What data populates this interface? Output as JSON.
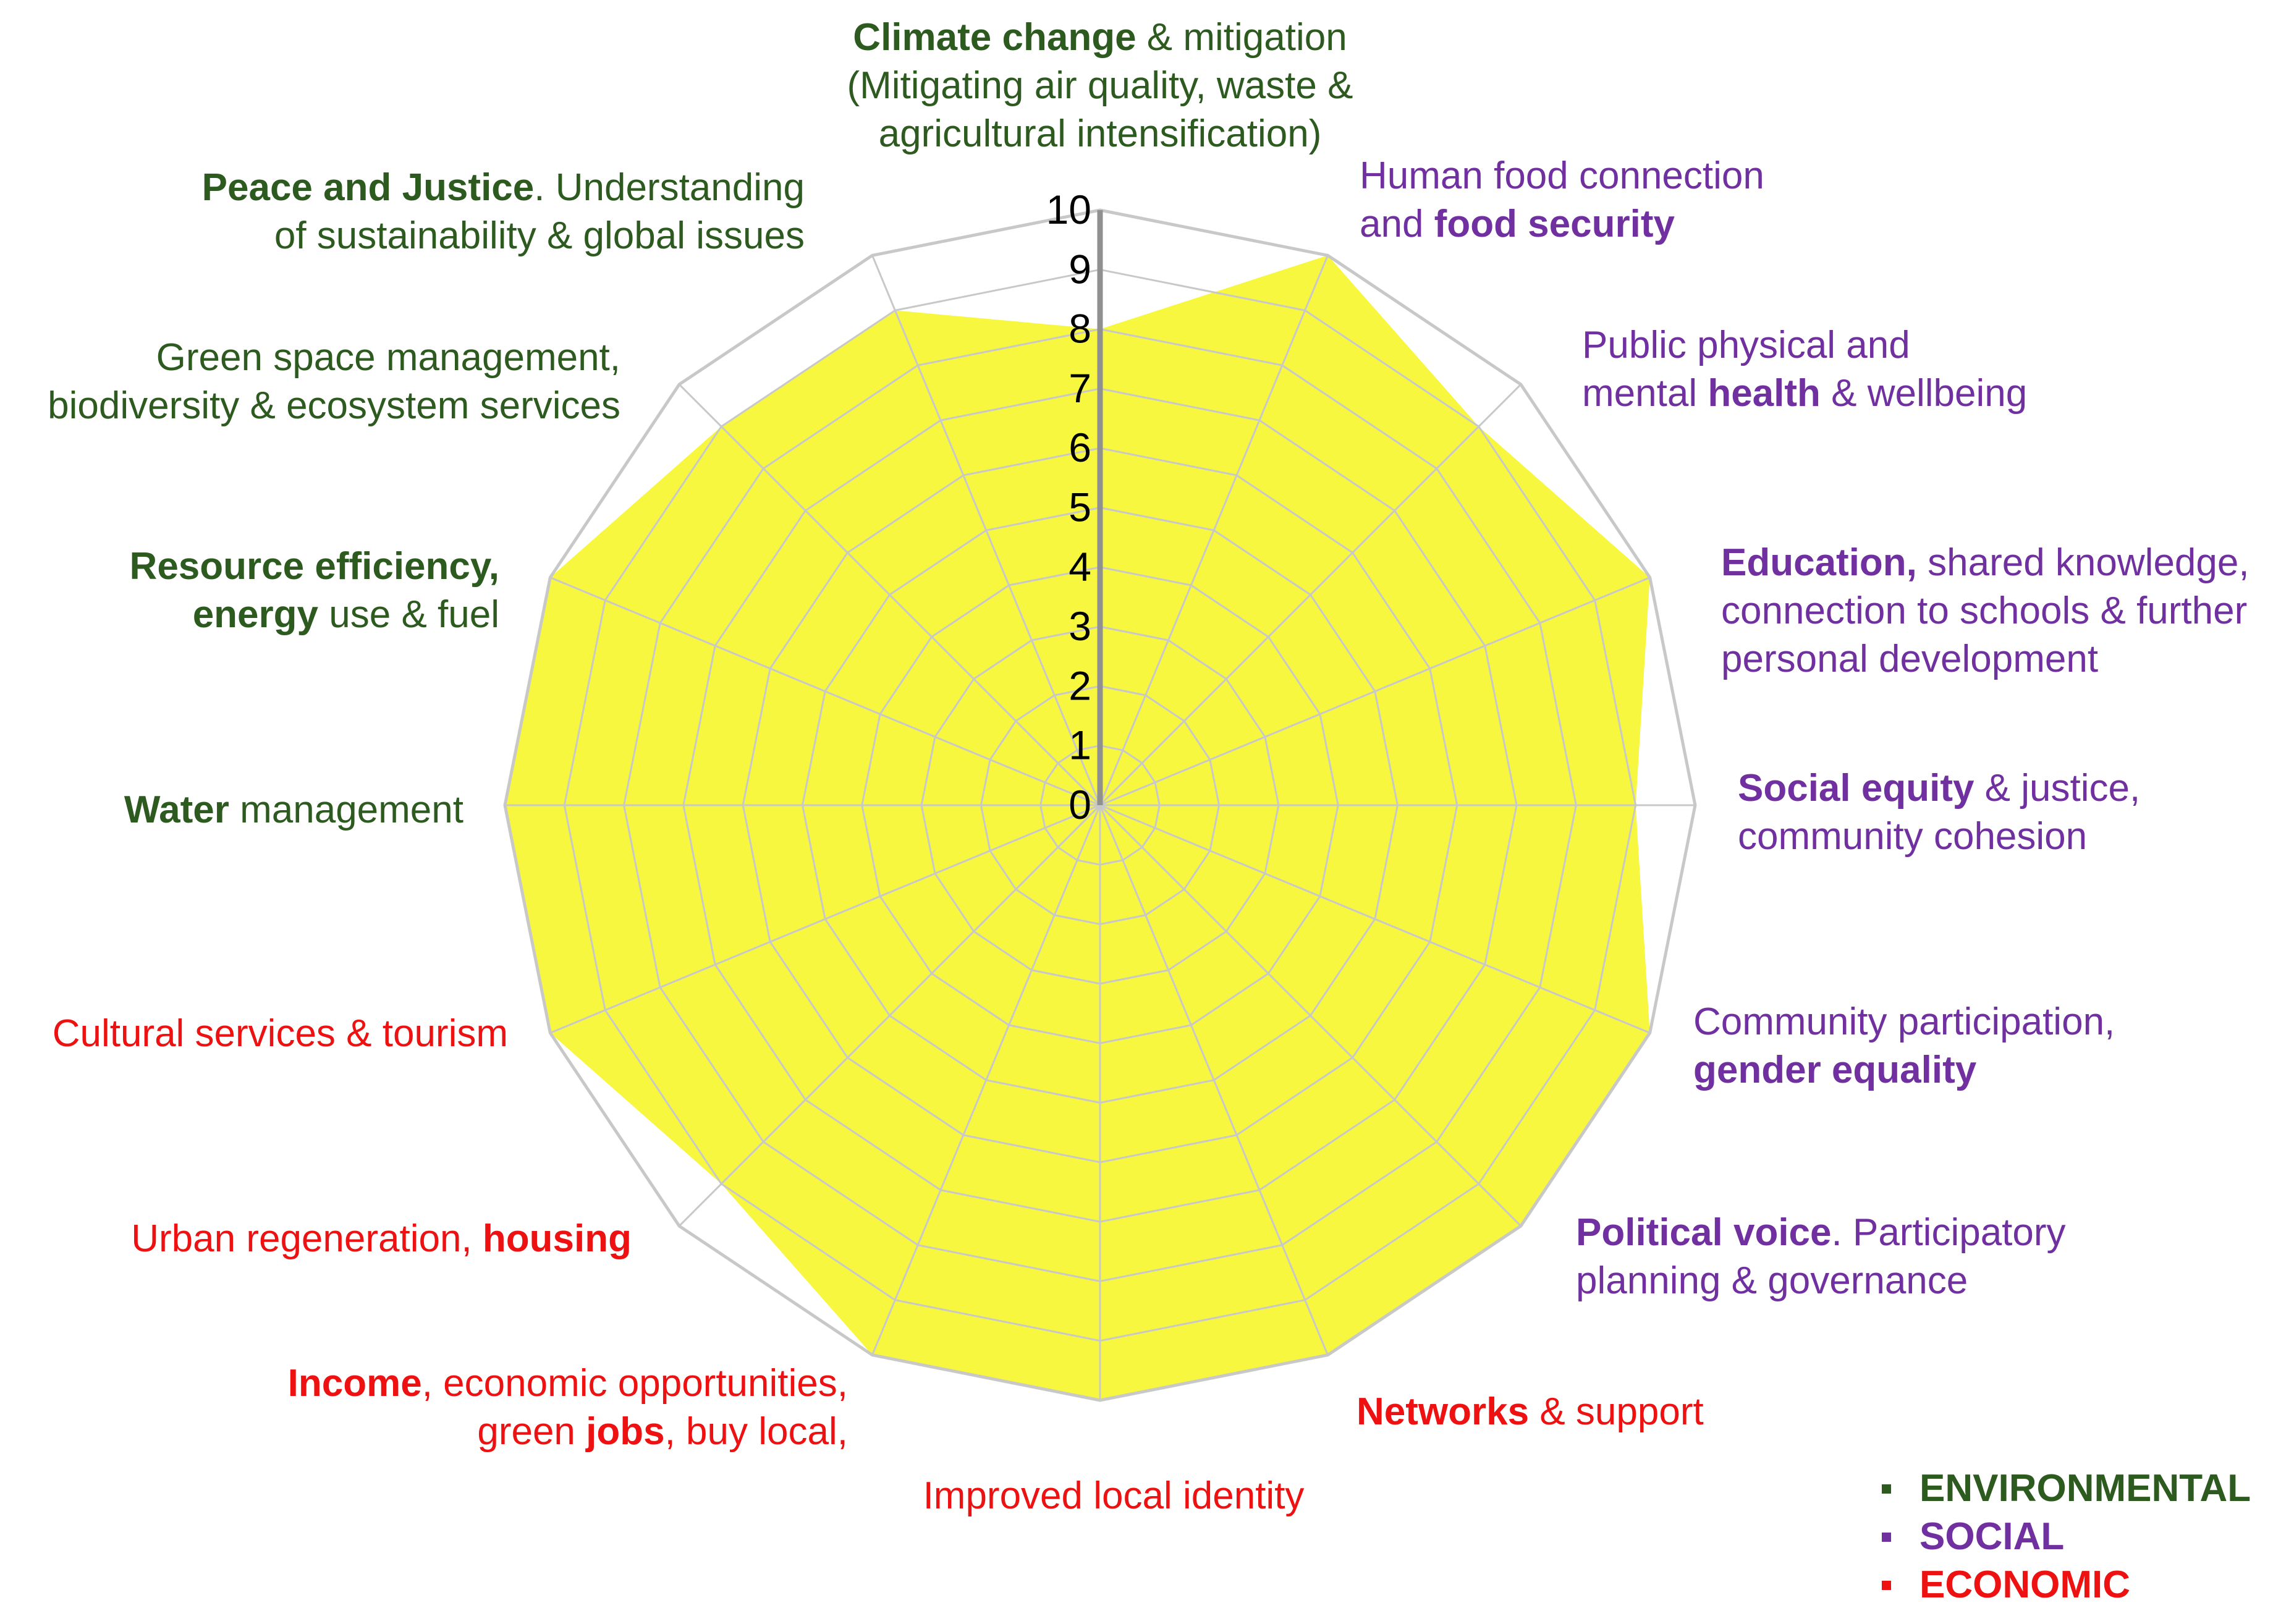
{
  "chart_data": {
    "type": "radar",
    "title": "",
    "scale": {
      "min": 0,
      "max": 10,
      "ticks": [
        "0",
        "1",
        "2",
        "3",
        "4",
        "5",
        "6",
        "7",
        "8",
        "9",
        "10"
      ]
    },
    "axes": [
      {
        "id": "climate",
        "group": "environmental",
        "lines": [
          [
            {
              "t": "Climate change",
              "b": true
            },
            {
              "t": " & mitigation",
              "b": false
            }
          ],
          [
            {
              "t": "(Mitigating air quality, waste &",
              "b": false
            }
          ],
          [
            {
              "t": "agricultural intensification)",
              "b": false
            }
          ]
        ]
      },
      {
        "id": "food",
        "group": "social",
        "lines": [
          [
            {
              "t": "Human food connection",
              "b": false
            }
          ],
          [
            {
              "t": "and ",
              "b": false
            },
            {
              "t": "food security",
              "b": true
            }
          ]
        ]
      },
      {
        "id": "health",
        "group": "social",
        "lines": [
          [
            {
              "t": "Public physical and",
              "b": false
            }
          ],
          [
            {
              "t": "mental ",
              "b": false
            },
            {
              "t": "health",
              "b": true
            },
            {
              "t": " & wellbeing",
              "b": false
            }
          ]
        ]
      },
      {
        "id": "education",
        "group": "social",
        "lines": [
          [
            {
              "t": "Education,",
              "b": true
            },
            {
              "t": " shared knowledge,",
              "b": false
            }
          ],
          [
            {
              "t": "connection to schools & further",
              "b": false
            }
          ],
          [
            {
              "t": "personal development",
              "b": false
            }
          ]
        ]
      },
      {
        "id": "equity",
        "group": "social",
        "lines": [
          [
            {
              "t": "Social equity",
              "b": true
            },
            {
              "t": " & justice,",
              "b": false
            }
          ],
          [
            {
              "t": "community cohesion",
              "b": false
            }
          ]
        ]
      },
      {
        "id": "participation",
        "group": "social",
        "lines": [
          [
            {
              "t": "Community participation,",
              "b": false
            }
          ],
          [
            {
              "t": "gender equality",
              "b": true
            }
          ]
        ]
      },
      {
        "id": "political",
        "group": "social",
        "lines": [
          [
            {
              "t": "Political voice",
              "b": true
            },
            {
              "t": ". Participatory",
              "b": false
            }
          ],
          [
            {
              "t": "planning & governance",
              "b": false
            }
          ]
        ]
      },
      {
        "id": "networks",
        "group": "economic",
        "lines": [
          [
            {
              "t": "Networks",
              "b": true
            },
            {
              "t": " & support",
              "b": false
            }
          ]
        ]
      },
      {
        "id": "identity",
        "group": "economic",
        "lines": [
          [
            {
              "t": "Improved local identity",
              "b": false
            }
          ]
        ]
      },
      {
        "id": "income",
        "group": "economic",
        "lines": [
          [
            {
              "t": "Income",
              "b": true
            },
            {
              "t": ", economic opportunities,",
              "b": false
            }
          ],
          [
            {
              "t": "green ",
              "b": false
            },
            {
              "t": "jobs",
              "b": true
            },
            {
              "t": ", buy local,",
              "b": false
            }
          ]
        ]
      },
      {
        "id": "housing",
        "group": "economic",
        "lines": [
          [
            {
              "t": "Urban regeneration, ",
              "b": false
            },
            {
              "t": "housing",
              "b": true
            }
          ]
        ]
      },
      {
        "id": "tourism",
        "group": "economic",
        "lines": [
          [
            {
              "t": "Cultural services & tourism",
              "b": false
            }
          ]
        ]
      },
      {
        "id": "water",
        "group": "environmental",
        "lines": [
          [
            {
              "t": "Water",
              "b": true
            },
            {
              "t": " management",
              "b": false
            }
          ]
        ]
      },
      {
        "id": "resource",
        "group": "environmental",
        "lines": [
          [
            {
              "t": "Resource efficiency,",
              "b": true
            }
          ],
          [
            {
              "t": "energy",
              "b": true
            },
            {
              "t": " use & fuel",
              "b": false
            }
          ]
        ]
      },
      {
        "id": "greenspace",
        "group": "environmental",
        "lines": [
          [
            {
              "t": "Green space management,",
              "b": false
            }
          ],
          [
            {
              "t": "biodiversity & ecosystem services",
              "b": false
            }
          ]
        ]
      },
      {
        "id": "peace",
        "group": "environmental",
        "lines": [
          [
            {
              "t": "Peace and Justice",
              "b": true
            },
            {
              "t": ". Understanding",
              "b": false
            }
          ],
          [
            {
              "t": "of sustainability & global issues",
              "b": false
            }
          ]
        ]
      }
    ],
    "series": [
      {
        "values": [
          8,
          10,
          9,
          10,
          9,
          10,
          10,
          10,
          10,
          10,
          9,
          10,
          10,
          10,
          9,
          9
        ],
        "fill": "#f7f740"
      }
    ],
    "grid": true,
    "legend_position": "bottom-right"
  },
  "legend": [
    {
      "label": "ENVIRONMENTAL",
      "group": "environmental"
    },
    {
      "label": "SOCIAL",
      "group": "social"
    },
    {
      "label": "ECONOMIC",
      "group": "economic"
    }
  ],
  "colors": {
    "environmental": "#2d5a1f",
    "social": "#7030a0",
    "economic": "#ee1111",
    "grid": "#c8c8c8",
    "fill": "#f7f740"
  }
}
